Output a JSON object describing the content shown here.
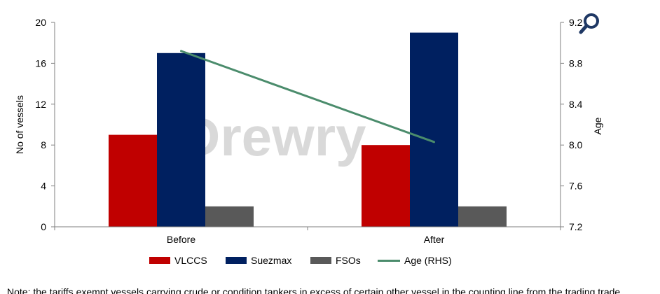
{
  "chart_data": {
    "type": "bar",
    "categories": [
      "Before",
      "After"
    ],
    "series": [
      {
        "name": "VLCCS",
        "color": "#c00000",
        "values": [
          9,
          8
        ]
      },
      {
        "name": "Suezmax",
        "color": "#002060",
        "values": [
          17,
          19
        ]
      },
      {
        "name": "FSOs",
        "color": "#595959",
        "values": [
          2,
          2
        ]
      }
    ],
    "line_series": {
      "name": "Age (RHS)",
      "color": "#4b8c6c",
      "values": [
        8.92,
        8.03
      ],
      "axis": "right"
    },
    "ylabel": "No of vessels",
    "ylabel_right": "Age",
    "ylim": [
      0,
      20
    ],
    "yticks": [
      "0",
      "4",
      "8",
      "12",
      "16",
      "20"
    ],
    "ylim_right": [
      7.2,
      9.2
    ],
    "yticks_right": [
      "7.2",
      "7.6",
      "8.0",
      "8.4",
      "8.8",
      "9.2"
    ],
    "grid": false,
    "legend_position": "bottom",
    "watermark": "Drewry"
  },
  "icons": {
    "zoom": "search-icon"
  },
  "footer_text": "Note: the tariffs exempt vessels carrying crude or condition tankers in excess of certain other vessel in the counting line from the trading trade"
}
